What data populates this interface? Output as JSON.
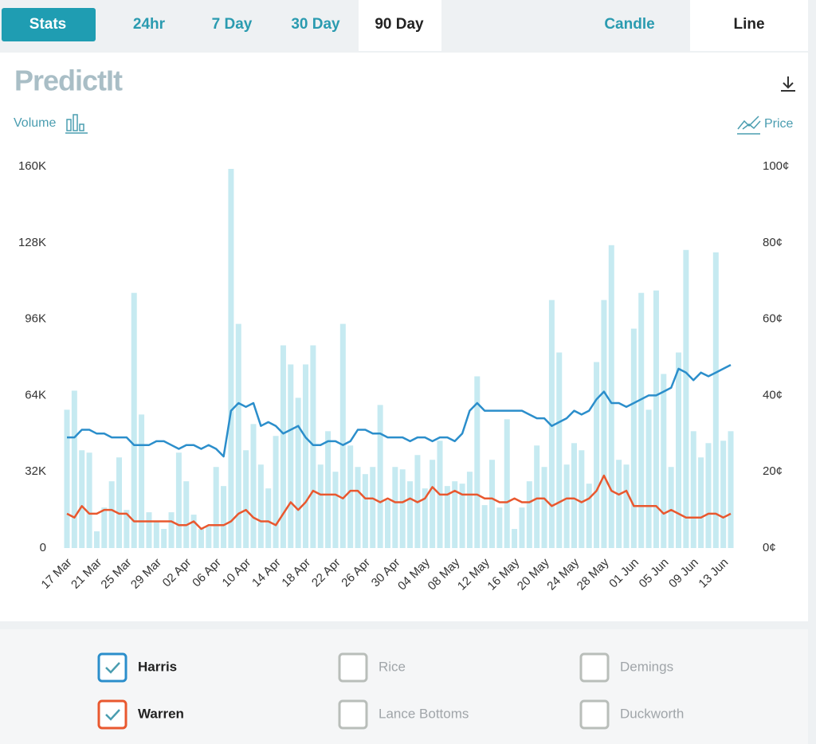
{
  "ui": {
    "tabs": [
      "Stats",
      "24hr",
      "7 Day",
      "30 Day",
      "90 Day"
    ],
    "active_range": "90 Day",
    "view_tabs": [
      "Candle",
      "Line"
    ],
    "active_view": "Line",
    "logo": "PredictIt",
    "price_label": "Price",
    "other_candidates": [
      "Rice",
      "Demings",
      "Lance Bottoms",
      "Duckworth"
    ]
  },
  "chart_data": {
    "type": "bar-line",
    "categories": [
      "17 Mar",
      null,
      null,
      null,
      "21 Mar",
      null,
      null,
      null,
      "25 Mar",
      null,
      null,
      null,
      "29 Mar",
      null,
      null,
      null,
      "02 Apr",
      null,
      null,
      null,
      "06 Apr",
      null,
      null,
      null,
      "10 Apr",
      null,
      null,
      null,
      "14 Apr",
      null,
      null,
      null,
      "18 Apr",
      null,
      null,
      null,
      "22 Apr",
      null,
      null,
      null,
      "26 Apr",
      null,
      null,
      null,
      "30 Apr",
      null,
      null,
      null,
      "04 May",
      null,
      null,
      null,
      "08 May",
      null,
      null,
      null,
      "12 May",
      null,
      null,
      null,
      "16 May",
      null,
      null,
      null,
      "20 May",
      null,
      null,
      null,
      "24 May",
      null,
      null,
      null,
      "28 May",
      null,
      null,
      null,
      "01 Jun",
      null,
      null,
      null,
      "05 Jun",
      null,
      null,
      null,
      "09 Jun",
      null,
      null,
      null,
      "13 Jun",
      null
    ],
    "ylim": [
      0,
      160000
    ],
    "yticks": [
      {
        "value": 0,
        "label": "0"
      },
      {
        "value": 32000,
        "label": "32K"
      },
      {
        "value": 64000,
        "label": "64K"
      },
      {
        "value": 96000,
        "label": "96K"
      },
      {
        "value": 128000,
        "label": "128K"
      },
      {
        "value": 160000,
        "label": "160K"
      }
    ],
    "y2lim": [
      0,
      100
    ],
    "y2ticks": [
      {
        "value": 0,
        "label": "0¢"
      },
      {
        "value": 20,
        "label": "20¢"
      },
      {
        "value": 40,
        "label": "40¢"
      },
      {
        "value": 60,
        "label": "60¢"
      },
      {
        "value": 80,
        "label": "80¢"
      },
      {
        "value": 100,
        "label": "100¢"
      }
    ],
    "series": [
      {
        "name": "Volume",
        "color": "#c6eaf1",
        "axis": "y",
        "values": [
          58000,
          66000,
          41000,
          40000,
          7000,
          17000,
          28000,
          38000,
          16000,
          107000,
          56000,
          15000,
          11000,
          8000,
          15000,
          40000,
          28000,
          14000,
          8000,
          9000,
          34000,
          26000,
          159000,
          94000,
          41000,
          52000,
          35000,
          25000,
          47000,
          85000,
          77000,
          63000,
          77000,
          85000,
          35000,
          49000,
          32000,
          94000,
          43000,
          34000,
          31000,
          34000,
          60000,
          20000,
          34000,
          33000,
          28000,
          39000,
          25000,
          37000,
          45000,
          26000,
          28000,
          27000,
          32000,
          72000,
          18000,
          37000,
          17000,
          54000,
          8000,
          17000,
          28000,
          43000,
          34000,
          104000,
          82000,
          35000,
          44000,
          41000,
          27000,
          78000,
          104000,
          127000,
          37000,
          35000,
          92000,
          107000,
          58000,
          108000,
          73000,
          34000,
          82000,
          125000,
          49000,
          38000,
          44000,
          124000,
          45000,
          49000
        ]
      },
      {
        "name": "Harris",
        "color": "#2b8ecb",
        "axis": "y2",
        "values": [
          29,
          29,
          31,
          31,
          30,
          30,
          29,
          29,
          29,
          27,
          27,
          27,
          28,
          28,
          27,
          26,
          27,
          27,
          26,
          27,
          26,
          24,
          36,
          38,
          37,
          38,
          32,
          33,
          32,
          30,
          31,
          32,
          29,
          27,
          27,
          28,
          28,
          27,
          28,
          31,
          31,
          30,
          30,
          29,
          29,
          29,
          28,
          29,
          29,
          28,
          29,
          29,
          28,
          30,
          36,
          38,
          36,
          36,
          36,
          36,
          36,
          36,
          35,
          34,
          34,
          32,
          33,
          34,
          36,
          35,
          36,
          39,
          41,
          38,
          38,
          37,
          38,
          39,
          40,
          40,
          41,
          42,
          47,
          46,
          44,
          46,
          45,
          46,
          47,
          48
        ]
      },
      {
        "name": "Warren",
        "color": "#e9582f",
        "axis": "y2",
        "values": [
          9,
          8,
          11,
          9,
          9,
          10,
          10,
          9,
          9,
          7,
          7,
          7,
          7,
          7,
          7,
          6,
          6,
          7,
          5,
          6,
          6,
          6,
          7,
          9,
          10,
          8,
          7,
          7,
          6,
          9,
          12,
          10,
          12,
          15,
          14,
          14,
          14,
          13,
          15,
          15,
          13,
          13,
          12,
          13,
          12,
          12,
          13,
          12,
          13,
          16,
          14,
          14,
          15,
          14,
          14,
          14,
          13,
          13,
          12,
          12,
          13,
          12,
          12,
          13,
          13,
          11,
          12,
          13,
          13,
          12,
          13,
          15,
          19,
          15,
          14,
          15,
          11,
          11,
          11,
          11,
          9,
          10,
          9,
          8,
          8,
          8,
          9,
          9,
          8,
          9
        ]
      }
    ]
  }
}
